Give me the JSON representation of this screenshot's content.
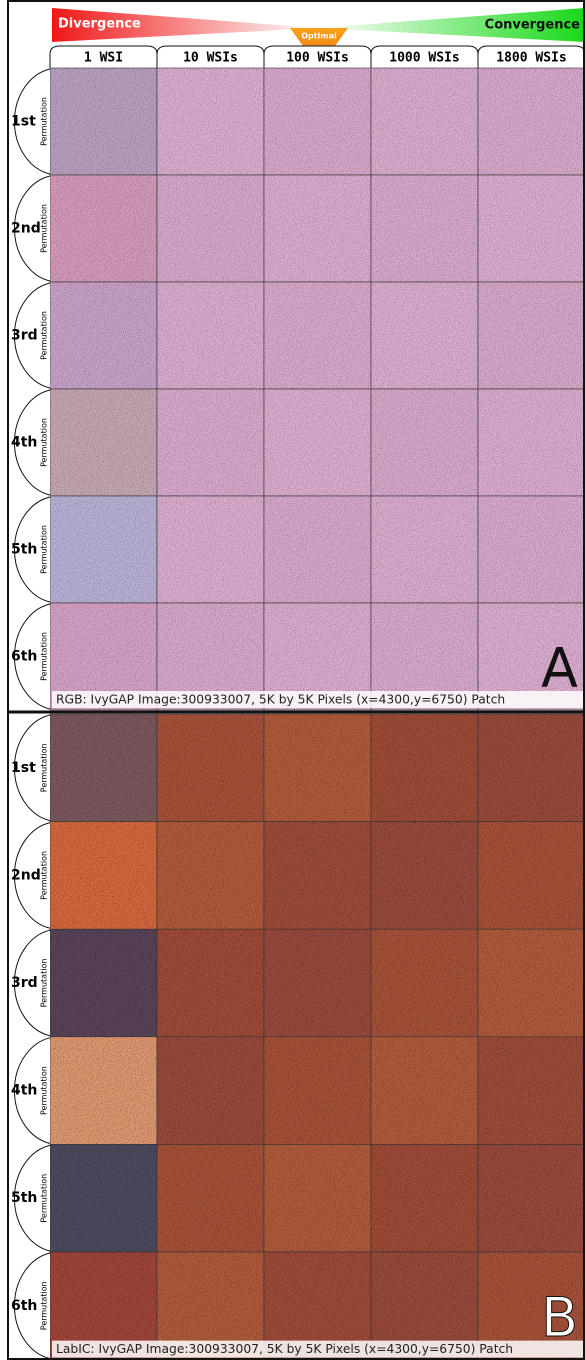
{
  "header": {
    "left": "Divergence",
    "middle": "Optimal",
    "right": "Convergence"
  },
  "columns": [
    "1 WSI",
    "10 WSIs",
    "100 WSIs",
    "1000 WSIs",
    "1800 WSIs"
  ],
  "rows": [
    "1st",
    "2nd",
    "3rd",
    "4th",
    "5th",
    "6th"
  ],
  "row_sublabel": "Permutation",
  "panels": [
    {
      "letter": "A",
      "caption": "RGB: IvyGAP Image:300933007, 5K by 5K Pixels (x=4300,y=6750) Patch"
    },
    {
      "letter": "B",
      "caption": "LabIC: IvyGAP Image:300933007, 5K by 5K Pixels (x=4300,y=6750) Patch"
    }
  ]
}
